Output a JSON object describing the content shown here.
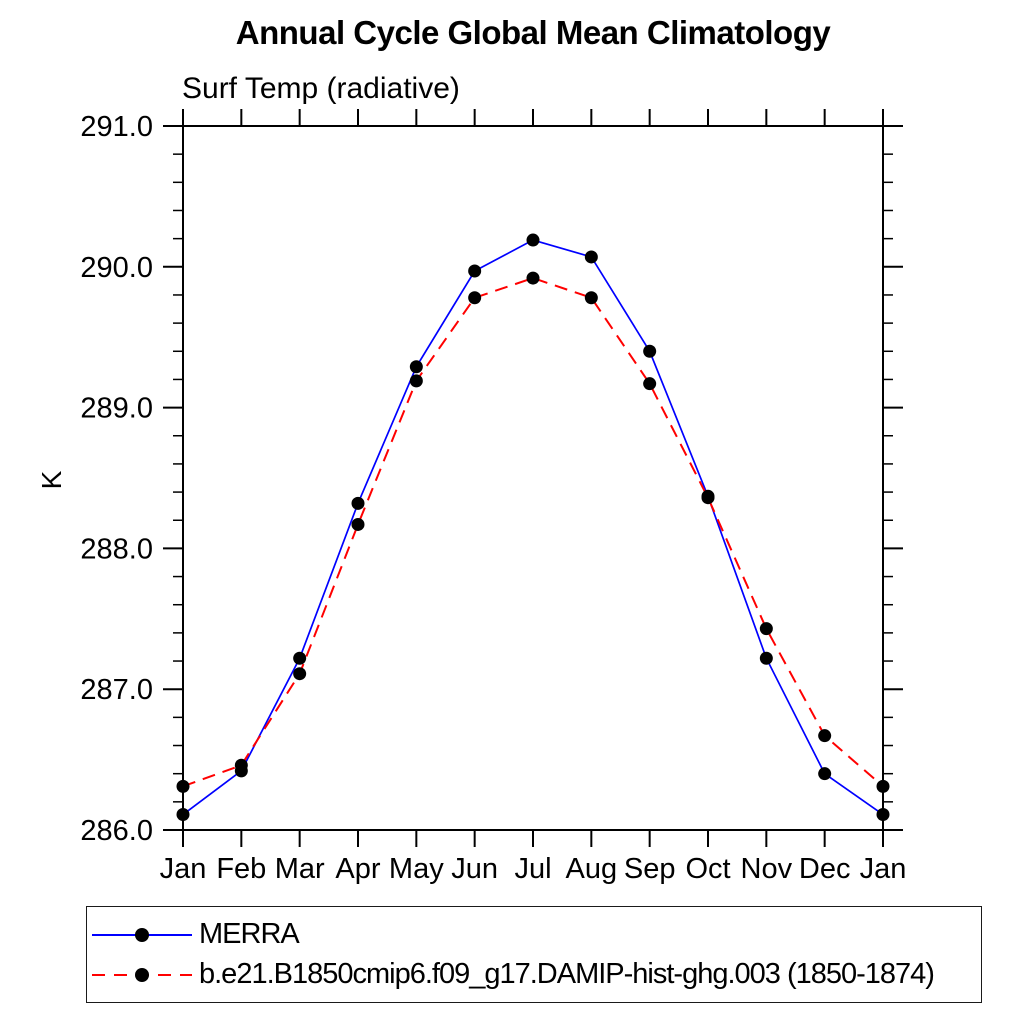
{
  "chart_data": {
    "type": "line",
    "title": "Annual Cycle Global Mean Climatology",
    "subtitle": "Surf Temp (radiative)",
    "ylabel": "K",
    "xlabel": "",
    "categories": [
      "Jan",
      "Feb",
      "Mar",
      "Apr",
      "May",
      "Jun",
      "Jul",
      "Aug",
      "Sep",
      "Oct",
      "Nov",
      "Dec",
      "Jan"
    ],
    "ylim": [
      286.0,
      291.0
    ],
    "yticks": {
      "major": [
        286.0,
        287.0,
        288.0,
        289.0,
        290.0,
        291.0
      ],
      "labels": [
        "286.0",
        "287.0",
        "288.0",
        "289.0",
        "290.0",
        "291.0"
      ],
      "minor_step": 0.2
    },
    "grid": false,
    "legend_position": "bottom-left-box",
    "axis_color": "#000000",
    "marker_color": "#000000",
    "series": [
      {
        "name": "MERRA",
        "color": "#0000ff",
        "line_style": "solid",
        "marker": "circle",
        "values": [
          286.11,
          286.42,
          287.22,
          288.32,
          289.29,
          289.97,
          290.19,
          290.07,
          289.4,
          288.37,
          287.22,
          286.4,
          286.11
        ]
      },
      {
        "name": "b.e21.B1850cmip6.f09_g17.DAMIP-hist-ghg.003 (1850-1874)",
        "color": "#ff0000",
        "line_style": "dashed",
        "marker": "circle",
        "values": [
          286.31,
          286.46,
          287.11,
          288.17,
          289.19,
          289.78,
          289.92,
          289.78,
          289.17,
          288.36,
          287.43,
          286.67,
          286.31
        ]
      }
    ]
  }
}
